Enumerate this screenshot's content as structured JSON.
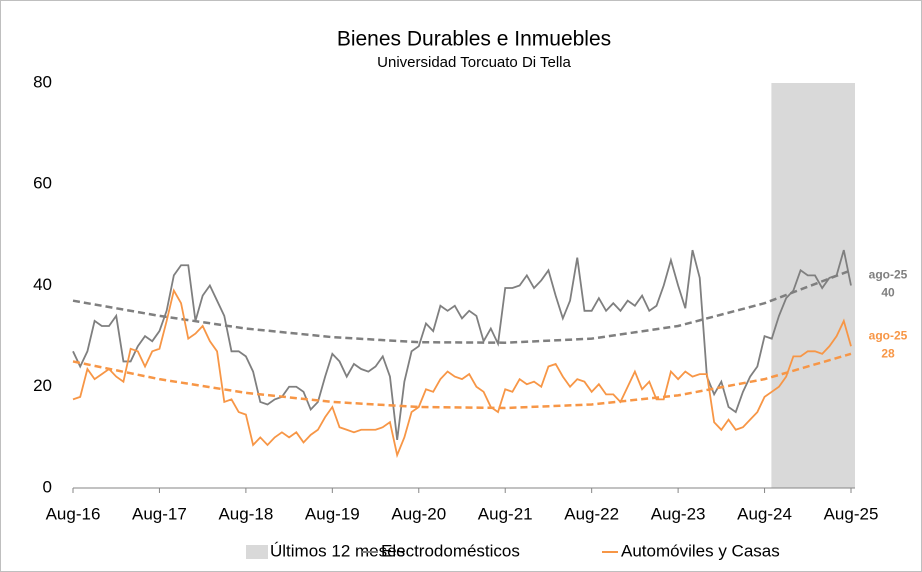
{
  "chart_data": {
    "type": "line",
    "title": "Bienes Durables e Inmuebles",
    "subtitle": "Universidad Torcuato Di Tella",
    "categories": [
      "Aug-16",
      null,
      null,
      null,
      null,
      null,
      null,
      null,
      null,
      null,
      null,
      null,
      "Aug-17",
      null,
      null,
      null,
      null,
      null,
      null,
      null,
      null,
      null,
      null,
      null,
      "Aug-18",
      null,
      null,
      null,
      null,
      null,
      null,
      null,
      null,
      null,
      null,
      null,
      "Aug-19",
      null,
      null,
      null,
      null,
      null,
      null,
      null,
      null,
      null,
      null,
      null,
      "Aug-20",
      null,
      null,
      null,
      null,
      null,
      null,
      null,
      null,
      null,
      null,
      null,
      "Aug-21",
      null,
      null,
      null,
      null,
      null,
      null,
      null,
      null,
      null,
      null,
      null,
      "Aug-22",
      null,
      null,
      null,
      null,
      null,
      null,
      null,
      null,
      null,
      null,
      null,
      "Aug-23",
      null,
      null,
      null,
      null,
      null,
      null,
      null,
      null,
      null,
      null,
      null,
      "Aug-24",
      null,
      null,
      null,
      null,
      null,
      null,
      null,
      null,
      null,
      null,
      null,
      "Aug-25"
    ],
    "ylim": [
      0,
      80
    ],
    "yticks": [
      0,
      20,
      40,
      60,
      80
    ],
    "shaded": {
      "name": "Últimos 12 meses",
      "months": 12,
      "color": "#d9d9d9"
    },
    "series": [
      {
        "name": "Electrodomésticos",
        "color": "#7f7f7f",
        "values": [
          27,
          24,
          27,
          33,
          32,
          32,
          34,
          25,
          25,
          28,
          30,
          29,
          31,
          35,
          42,
          44,
          44,
          33,
          38,
          40,
          37,
          34,
          27,
          27,
          26,
          23,
          17,
          16.5,
          17.5,
          18,
          20,
          20,
          19,
          15.5,
          17,
          22,
          26.5,
          25,
          22,
          24.5,
          23.5,
          23,
          24,
          26,
          22,
          9.5,
          21,
          27,
          28,
          32.5,
          31,
          36,
          35,
          36,
          33.5,
          35,
          34,
          29,
          31.5,
          28.5,
          39.5,
          39.5,
          40,
          42,
          39.5,
          41,
          43,
          38,
          33.5,
          37,
          45.5,
          35,
          35,
          37.5,
          35,
          36.5,
          35,
          37,
          36,
          38,
          35,
          36,
          40,
          45,
          40,
          35.5,
          47,
          41.5,
          22,
          18.5,
          21,
          16,
          15,
          19,
          22,
          24,
          30,
          29.5,
          34,
          37.5,
          39,
          43,
          42,
          42,
          39.5,
          41.5,
          42,
          47,
          40
        ],
        "trend": [
          37,
          34,
          31.5,
          29.8,
          28.8,
          28.7,
          29.5,
          32,
          36.5,
          43
        ]
      },
      {
        "name": "Automóviles y Casas",
        "color": "#f79646",
        "values": [
          17.5,
          18,
          23.5,
          21.5,
          22.5,
          23.5,
          22,
          21,
          27.5,
          27,
          24,
          27,
          27.5,
          33,
          39,
          36.5,
          29.5,
          30.5,
          32,
          29,
          27,
          17,
          17.5,
          15,
          14.5,
          8.5,
          10,
          8.5,
          10,
          11,
          10,
          11,
          9,
          10.5,
          11.5,
          14,
          16,
          12,
          11.5,
          11,
          11.5,
          11.5,
          11.5,
          12,
          13,
          6.5,
          10,
          15,
          16,
          19.5,
          19,
          21.5,
          23,
          22,
          21.5,
          22.5,
          20,
          19,
          16,
          15,
          19.5,
          19,
          21.5,
          20.5,
          21,
          20,
          24,
          24.5,
          22,
          20,
          21.5,
          21,
          19,
          20.5,
          18.5,
          18.5,
          17,
          20,
          23,
          19.5,
          21,
          17.5,
          17.5,
          23,
          21.5,
          23,
          22,
          22.5,
          22.5,
          13,
          11.5,
          13.5,
          11.5,
          12,
          13.5,
          15,
          18,
          19,
          20,
          22,
          26,
          26,
          27,
          27,
          26.5,
          28,
          30,
          33,
          28
        ],
        "trend": [
          25,
          21.5,
          18.8,
          17,
          16,
          15.8,
          16.5,
          18.3,
          21.5,
          26.5
        ]
      }
    ],
    "annotations": [
      {
        "label": "ago-25",
        "value": 40,
        "color": "#7f7f7f"
      },
      {
        "label": "ago-25",
        "value": 28,
        "color": "#f79646"
      }
    ]
  }
}
